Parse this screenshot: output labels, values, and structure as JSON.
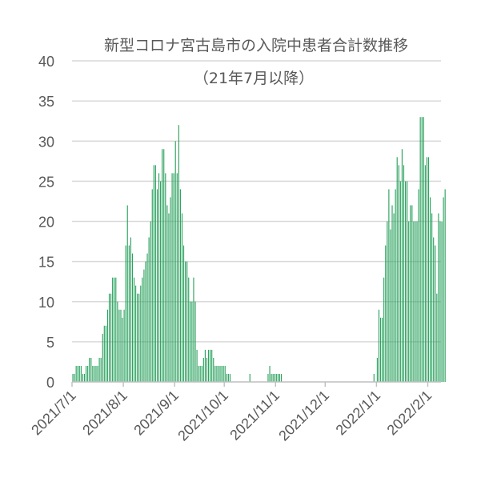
{
  "chart_data": {
    "type": "bar",
    "title": "新型コロナ宮古島市の入院中患者合計数推移",
    "subtitle": "（21年7月以降）",
    "xlabel": "",
    "ylabel": "",
    "ylim": [
      0,
      40
    ],
    "yticks": [
      "0",
      "5",
      "10",
      "15",
      "20",
      "25",
      "30",
      "35",
      "40"
    ],
    "grid": true,
    "legend": "none",
    "bar_color": "#2ca25f",
    "x_start": "2021/7/1",
    "x_end": "2022/2/8",
    "xtick_labels": [
      "2021/7/1",
      "2021/8/1",
      "2021/9/1",
      "2021/10/1",
      "2021/11/1",
      "2021/12/1",
      "2022/1/1",
      "2022/2/1"
    ],
    "series": [
      {
        "segments": [
          {
            "start": "2021/7/1",
            "values": [
              1,
              1,
              2,
              2,
              2,
              2,
              1,
              1,
              2,
              2,
              3,
              3,
              2,
              2,
              2,
              2,
              3,
              3,
              6,
              7,
              7,
              9,
              11,
              11,
              13,
              13,
              13,
              10,
              9,
              9,
              8,
              9,
              17,
              22,
              17,
              18,
              16,
              13,
              12,
              11,
              11,
              12,
              13,
              14,
              15,
              16,
              18,
              20,
              24,
              27,
              27,
              24,
              26,
              25,
              29,
              29,
              26,
              22,
              21,
              23,
              26,
              26,
              30,
              26,
              32,
              24,
              21,
              17,
              15,
              15,
              13,
              10,
              10,
              13,
              10,
              4,
              2,
              2,
              2,
              3,
              4,
              3,
              4,
              4,
              4,
              3,
              2,
              2,
              2,
              2,
              2,
              2,
              2,
              1,
              1,
              1
            ]
          },
          {
            "start": "2021/10/16",
            "values": [
              1
            ]
          },
          {
            "start": "2021/10/27",
            "values": [
              1,
              2,
              1,
              1,
              1,
              1,
              1,
              1,
              1
            ]
          },
          {
            "start": "2021/12/30",
            "values": [
              1,
              0,
              3,
              9,
              8,
              8,
              13,
              17,
              20,
              24,
              19,
              22,
              21,
              24,
              28,
              27,
              25,
              29,
              27,
              25,
              25,
              20,
              22,
              22,
              20,
              20,
              20,
              24,
              33,
              33,
              33,
              27,
              28,
              28,
              23,
              21,
              18,
              17,
              11,
              21,
              20,
              20,
              23,
              24
            ]
          }
        ]
      }
    ]
  }
}
